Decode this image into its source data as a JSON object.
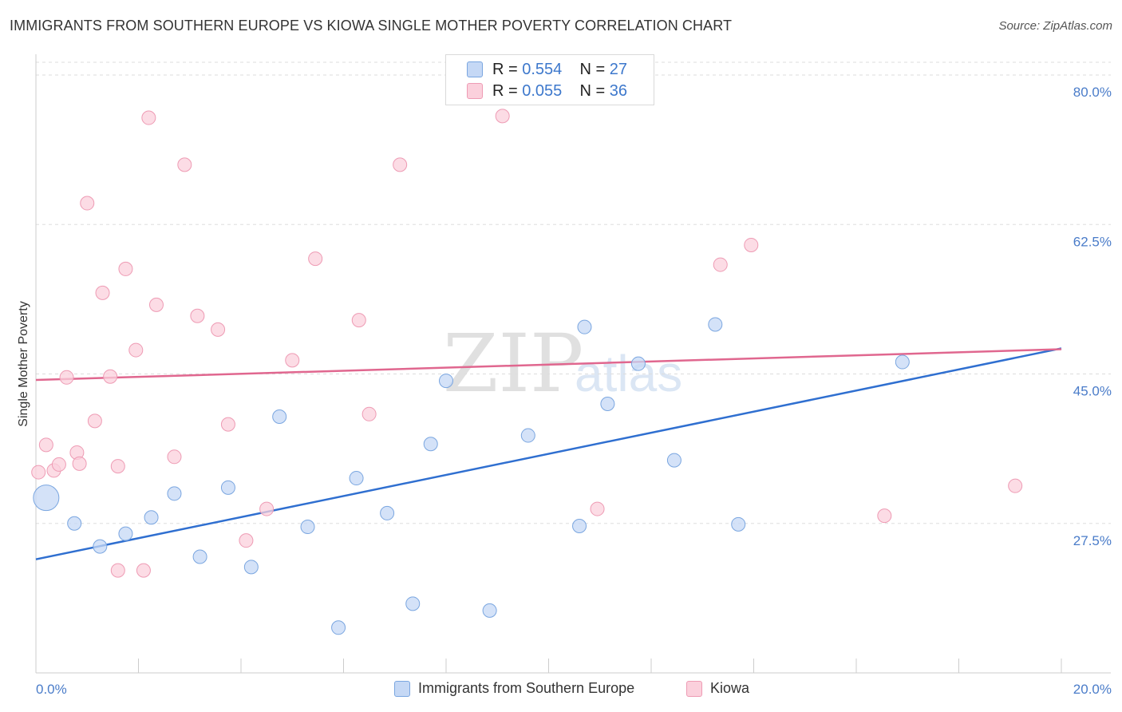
{
  "title": "IMMIGRANTS FROM SOUTHERN EUROPE VS KIOWA SINGLE MOTHER POVERTY CORRELATION CHART",
  "source": "Source: ZipAtlas.com",
  "watermark": {
    "zip": "ZIP",
    "atlas": "atlas"
  },
  "legend": {
    "r_label": "R =",
    "n_label": "N =",
    "series": [
      {
        "r": "0.554",
        "n": "27"
      },
      {
        "r": "0.055",
        "n": "36"
      }
    ]
  },
  "colors": {
    "blue_fill": "#c5d8f5",
    "blue_stroke": "#7aa6e0",
    "blue_line": "#2f6fd0",
    "pink_fill": "#fbd0dc",
    "pink_stroke": "#ee9bb4",
    "pink_line": "#e0678f",
    "grid": "#dddddd",
    "axis_text": "#4a7cc9"
  },
  "chart_data": {
    "type": "scatter",
    "title": "IMMIGRANTS FROM SOUTHERN EUROPE VS KIOWA SINGLE MOTHER POVERTY CORRELATION CHART",
    "xlabel": "",
    "ylabel": "Single Mother Poverty",
    "xlim": [
      0,
      20
    ],
    "ylim": [
      10,
      81.5
    ],
    "x_tick_labels": [
      "0.0%",
      "20.0%"
    ],
    "y_ticks": [
      27.5,
      45.0,
      62.5,
      80.0
    ],
    "y_tick_labels": [
      "27.5%",
      "45.0%",
      "62.5%",
      "80.0%"
    ],
    "grid": true,
    "legend_position": "top-center",
    "series": [
      {
        "name": "Immigrants from Southern Europe",
        "color": "blue",
        "regression": {
          "x0": 0,
          "y0": 23.3,
          "x1": 20,
          "y1": 48.0
        },
        "points": [
          {
            "x": 0.2,
            "y": 30.5,
            "big": true
          },
          {
            "x": 0.75,
            "y": 27.5
          },
          {
            "x": 1.25,
            "y": 24.8
          },
          {
            "x": 1.75,
            "y": 26.3
          },
          {
            "x": 2.25,
            "y": 28.2
          },
          {
            "x": 2.7,
            "y": 31.0
          },
          {
            "x": 3.2,
            "y": 23.6
          },
          {
            "x": 3.75,
            "y": 31.7
          },
          {
            "x": 4.2,
            "y": 22.4
          },
          {
            "x": 4.75,
            "y": 40.0
          },
          {
            "x": 5.3,
            "y": 27.1
          },
          {
            "x": 5.9,
            "y": 15.3
          },
          {
            "x": 6.25,
            "y": 32.8
          },
          {
            "x": 6.85,
            "y": 28.7
          },
          {
            "x": 7.35,
            "y": 18.1
          },
          {
            "x": 7.7,
            "y": 36.8
          },
          {
            "x": 8.0,
            "y": 44.2
          },
          {
            "x": 8.85,
            "y": 17.3
          },
          {
            "x": 9.6,
            "y": 37.8
          },
          {
            "x": 10.6,
            "y": 27.2
          },
          {
            "x": 10.7,
            "y": 50.5
          },
          {
            "x": 11.15,
            "y": 41.5
          },
          {
            "x": 11.75,
            "y": 46.2
          },
          {
            "x": 12.45,
            "y": 34.9
          },
          {
            "x": 13.25,
            "y": 50.8
          },
          {
            "x": 13.7,
            "y": 27.4
          },
          {
            "x": 16.9,
            "y": 46.4
          }
        ]
      },
      {
        "name": "Kiowa",
        "color": "pink",
        "regression": {
          "x0": 0,
          "y0": 44.3,
          "x1": 20,
          "y1": 47.9
        },
        "points": [
          {
            "x": 0.05,
            "y": 33.5
          },
          {
            "x": 0.2,
            "y": 36.7
          },
          {
            "x": 0.35,
            "y": 33.7
          },
          {
            "x": 0.45,
            "y": 34.4
          },
          {
            "x": 0.6,
            "y": 44.6
          },
          {
            "x": 0.8,
            "y": 35.8
          },
          {
            "x": 0.85,
            "y": 34.5
          },
          {
            "x": 1.0,
            "y": 65.0
          },
          {
            "x": 1.15,
            "y": 39.5
          },
          {
            "x": 1.3,
            "y": 54.5
          },
          {
            "x": 1.45,
            "y": 44.7
          },
          {
            "x": 1.6,
            "y": 22.0
          },
          {
            "x": 1.6,
            "y": 34.2
          },
          {
            "x": 1.75,
            "y": 57.3
          },
          {
            "x": 1.95,
            "y": 47.8
          },
          {
            "x": 2.1,
            "y": 22.0
          },
          {
            "x": 2.2,
            "y": 75.0
          },
          {
            "x": 2.35,
            "y": 53.1
          },
          {
            "x": 2.7,
            "y": 35.3
          },
          {
            "x": 2.9,
            "y": 69.5
          },
          {
            "x": 3.15,
            "y": 51.8
          },
          {
            "x": 3.55,
            "y": 50.2
          },
          {
            "x": 3.75,
            "y": 39.1
          },
          {
            "x": 4.1,
            "y": 25.5
          },
          {
            "x": 4.5,
            "y": 29.2
          },
          {
            "x": 5.0,
            "y": 46.6
          },
          {
            "x": 5.45,
            "y": 58.5
          },
          {
            "x": 6.3,
            "y": 51.3
          },
          {
            "x": 6.5,
            "y": 40.3
          },
          {
            "x": 7.1,
            "y": 69.5
          },
          {
            "x": 9.1,
            "y": 75.2
          },
          {
            "x": 10.95,
            "y": 29.2
          },
          {
            "x": 13.35,
            "y": 57.8
          },
          {
            "x": 13.95,
            "y": 60.1
          },
          {
            "x": 16.55,
            "y": 28.4
          },
          {
            "x": 19.1,
            "y": 31.9
          }
        ]
      }
    ]
  }
}
